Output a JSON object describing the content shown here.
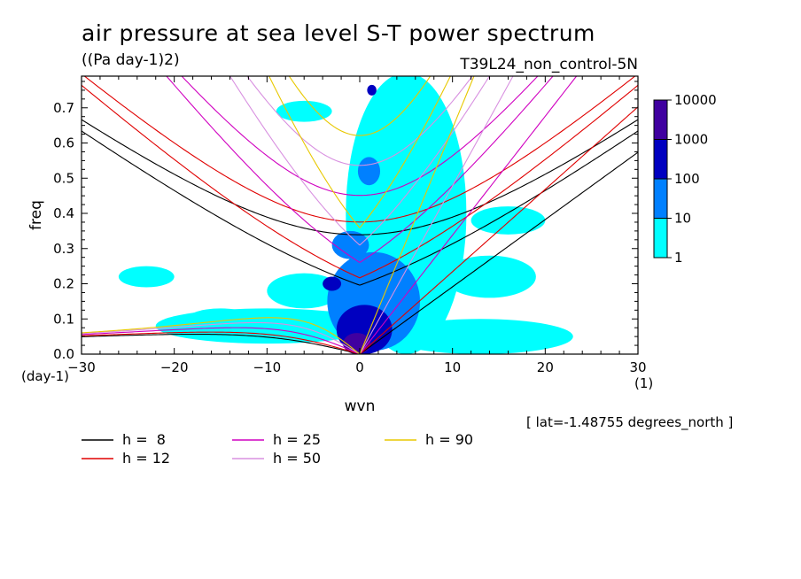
{
  "chart_data": {
    "type": "heatmap",
    "title": "air pressure at sea level S-T power spectrum",
    "units": "((Pa day-1)2)",
    "experiment": "T39L24_non_control-5N",
    "xlabel": "wvn",
    "ylabel": "freq",
    "x_unit": "(1)",
    "y_unit": "(day-1)",
    "xlim": [
      -30,
      30
    ],
    "ylim": [
      0,
      0.79
    ],
    "x_ticks": [
      -30,
      -20,
      -10,
      0,
      10,
      20,
      30
    ],
    "y_ticks": [
      0.0,
      0.1,
      0.2,
      0.3,
      0.4,
      0.5,
      0.6,
      0.7
    ],
    "colorbar": {
      "levels": [
        "1",
        "10",
        "100",
        "1000",
        "10000"
      ],
      "colors": [
        "#00ffff",
        "#0080ff",
        "#0000c0",
        "#4000a0"
      ]
    },
    "contour_regions": [
      {
        "level": 1,
        "cx": 5,
        "cy": 0.4,
        "rx": 6.5,
        "ry": 0.4
      },
      {
        "level": 1,
        "cx": -10,
        "cy": 0.08,
        "rx": 12,
        "ry": 0.05
      },
      {
        "level": 1,
        "cx": 13,
        "cy": 0.05,
        "rx": 10,
        "ry": 0.05
      },
      {
        "level": 1,
        "cx": 14,
        "cy": 0.22,
        "rx": 5,
        "ry": 0.06
      },
      {
        "level": 1,
        "cx": -23,
        "cy": 0.22,
        "rx": 3,
        "ry": 0.03
      },
      {
        "level": 1,
        "cx": -6,
        "cy": 0.18,
        "rx": 4,
        "ry": 0.05
      },
      {
        "level": 1,
        "cx": 16,
        "cy": 0.38,
        "rx": 4,
        "ry": 0.04
      },
      {
        "level": 1,
        "cx": -6,
        "cy": 0.69,
        "rx": 3,
        "ry": 0.03
      },
      {
        "level": 1,
        "cx": -15,
        "cy": 0.09,
        "rx": 4,
        "ry": 0.04
      },
      {
        "level": 10,
        "cx": 1.5,
        "cy": 0.15,
        "rx": 5,
        "ry": 0.14
      },
      {
        "level": 10,
        "cx": -1,
        "cy": 0.31,
        "rx": 2,
        "ry": 0.04
      },
      {
        "level": 10,
        "cx": 1,
        "cy": 0.52,
        "rx": 1.2,
        "ry": 0.04
      },
      {
        "level": 100,
        "cx": 0.5,
        "cy": 0.07,
        "rx": 3,
        "ry": 0.07
      },
      {
        "level": 100,
        "cx": -3,
        "cy": 0.2,
        "rx": 1,
        "ry": 0.02
      },
      {
        "level": 100,
        "cx": 1.3,
        "cy": 0.75,
        "rx": 0.5,
        "ry": 0.015
      },
      {
        "level": 1000,
        "cx": -0.3,
        "cy": 0.03,
        "rx": 1.5,
        "ry": 0.03
      }
    ],
    "dispersion_curves": [
      {
        "h": "8",
        "color": "#000000",
        "label": "h =  8"
      },
      {
        "h": "12",
        "color": "#e00000",
        "label": "h = 12"
      },
      {
        "h": "25",
        "color": "#d000c0",
        "label": "h = 25"
      },
      {
        "h": "50",
        "color": "#d890e0",
        "label": "h = 50"
      },
      {
        "h": "90",
        "color": "#e8c800",
        "label": "h = 90"
      }
    ],
    "annotation": "[ lat=-1.48755 degrees_north ]"
  }
}
